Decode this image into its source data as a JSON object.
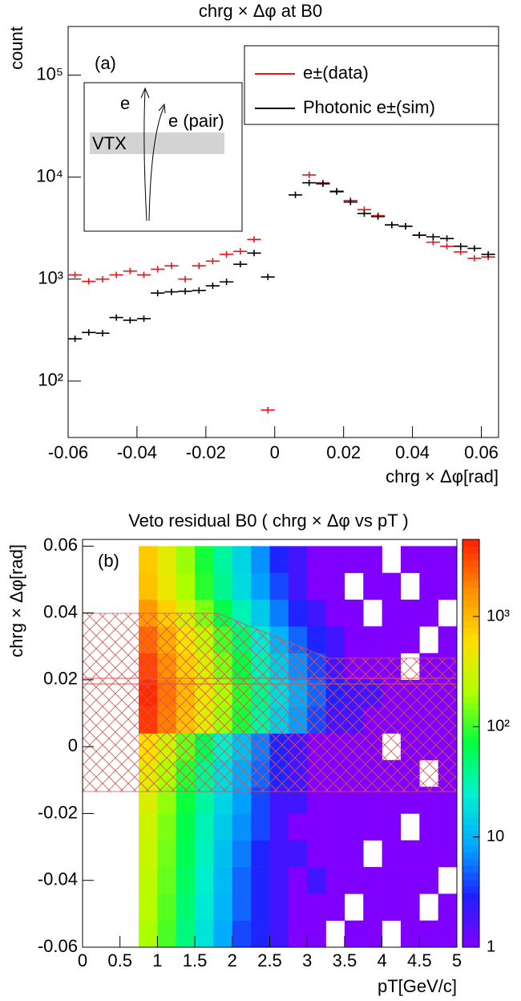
{
  "chart_data": [
    {
      "type": "errorpoints",
      "title": "chrg × Δφ at B0",
      "x_label": "chrg × Δφ[rad]",
      "y_label": "count",
      "annotations": [
        "(a)",
        "e",
        "e (pair)",
        "VTX"
      ],
      "x": [
        -0.058,
        -0.054,
        -0.05,
        -0.046,
        -0.042,
        -0.038,
        -0.034,
        -0.03,
        -0.026,
        -0.022,
        -0.018,
        -0.014,
        -0.01,
        -0.006,
        -0.002,
        0.002,
        0.006,
        0.01,
        0.014,
        0.018,
        0.022,
        0.026,
        0.03,
        0.034,
        0.038,
        0.042,
        0.046,
        0.05,
        0.054,
        0.058,
        0.062
      ],
      "series": [
        {
          "name": "e±(data)",
          "color": "#e8141e",
          "values": [
            1100,
            950,
            1000,
            1100,
            1200,
            1100,
            1250,
            1350,
            1000,
            1350,
            1500,
            1750,
            1870,
            2450,
            52,
            null,
            null,
            10500,
            8800,
            7300,
            5900,
            4800,
            4200,
            3400,
            3300,
            2700,
            2300,
            2100,
            1850,
            1600,
            1650
          ]
        },
        {
          "name": "Photonic e±(sim)",
          "color": "#000000",
          "values": [
            260,
            300,
            295,
            420,
            395,
            410,
            730,
            750,
            760,
            775,
            860,
            940,
            1400,
            1800,
            1050,
            null,
            6700,
            8800,
            8600,
            7200,
            5700,
            4400,
            4100,
            3400,
            3300,
            2700,
            2600,
            2500,
            2100,
            2000,
            1750
          ]
        }
      ],
      "xlim": [
        -0.06,
        0.065
      ],
      "xticks": [
        -0.06,
        -0.04,
        -0.02,
        0,
        0.02,
        0.04,
        0.06
      ],
      "ylim": [
        28,
        300000
      ],
      "log_y": true,
      "yticks": [
        {
          "value": 100,
          "label": "10²"
        },
        {
          "value": 1000,
          "label": "10³"
        },
        {
          "value": 10000,
          "label": "10⁴"
        },
        {
          "value": 100000,
          "label": "10⁵"
        }
      ],
      "legend": "top-right"
    },
    {
      "type": "heatmap",
      "title": "Veto residual B0 ( chrg × Δφ vs pT )",
      "x_label": "pT[GeV/c]",
      "y_label": "chrg × Δφ[rad]",
      "annotations": [
        "(b)"
      ],
      "xbins": [
        0.75,
        1,
        1.25,
        1.5,
        1.75,
        2,
        2.25,
        2.5,
        2.75,
        3,
        3.25,
        3.5,
        3.75,
        4,
        4.25,
        4.5,
        4.75,
        5
      ],
      "ybins": [
        -0.06,
        -0.052,
        -0.044,
        -0.036,
        -0.028,
        -0.02,
        -0.012,
        -0.004,
        0.004,
        0.012,
        0.02,
        0.028,
        0.036,
        0.044,
        0.052,
        0.06
      ],
      "values": [
        [
          200,
          110,
          45,
          20,
          9,
          4,
          3,
          2,
          1,
          1,
          null,
          1,
          1,
          null,
          1,
          1,
          1
        ],
        [
          230,
          120,
          50,
          22,
          10,
          5,
          3,
          2,
          1,
          1,
          1,
          null,
          1,
          1,
          1,
          null,
          1
        ],
        [
          250,
          130,
          55,
          25,
          11,
          5,
          3,
          2,
          1,
          2,
          1,
          1,
          1,
          1,
          1,
          1,
          null
        ],
        [
          280,
          140,
          60,
          28,
          12,
          6,
          3,
          2,
          2,
          1,
          1,
          1,
          null,
          1,
          1,
          1,
          1
        ],
        [
          300,
          150,
          65,
          30,
          14,
          7,
          4,
          2,
          1,
          1,
          1,
          1,
          1,
          1,
          null,
          1,
          1
        ],
        [
          350,
          170,
          75,
          35,
          16,
          8,
          4,
          2,
          2,
          1,
          1,
          1,
          1,
          1,
          1,
          1,
          1
        ],
        [
          400,
          200,
          90,
          40,
          18,
          9,
          5,
          3,
          2,
          1,
          1,
          1,
          1,
          1,
          1,
          null,
          1
        ],
        [
          600,
          300,
          130,
          60,
          25,
          12,
          6,
          3,
          2,
          1,
          1,
          1,
          1,
          null,
          1,
          1,
          1
        ],
        [
          4000,
          2000,
          900,
          400,
          180,
          80,
          35,
          15,
          8,
          4,
          2,
          2,
          1,
          1,
          1,
          1,
          1
        ],
        [
          4500,
          2200,
          1000,
          450,
          200,
          90,
          40,
          18,
          9,
          5,
          3,
          2,
          2,
          1,
          1,
          1,
          1
        ],
        [
          3500,
          1700,
          750,
          350,
          150,
          70,
          30,
          14,
          7,
          4,
          2,
          1,
          1,
          1,
          null,
          1,
          1
        ],
        [
          2500,
          1200,
          550,
          250,
          110,
          50,
          22,
          10,
          5,
          3,
          2,
          1,
          1,
          1,
          1,
          null,
          1
        ],
        [
          1500,
          750,
          330,
          150,
          65,
          30,
          14,
          6,
          3,
          2,
          1,
          1,
          null,
          1,
          1,
          1,
          null
        ],
        [
          900,
          450,
          200,
          90,
          40,
          18,
          8,
          4,
          2,
          1,
          1,
          null,
          1,
          1,
          null,
          1,
          1
        ],
        [
          800,
          400,
          180,
          80,
          35,
          16,
          7,
          3,
          2,
          1,
          1,
          1,
          1,
          null,
          1,
          1,
          1
        ]
      ],
      "xlim": [
        0,
        5
      ],
      "xticks": [
        0,
        0.5,
        1,
        1.5,
        2,
        2.5,
        3,
        3.5,
        4,
        4.5,
        5
      ],
      "ylim": [
        -0.06,
        0.062
      ],
      "yticks": [
        -0.06,
        -0.04,
        -0.02,
        0,
        0.02,
        0.04,
        0.06
      ],
      "zlim": [
        1,
        5000
      ],
      "log_z": true,
      "zticks": [
        1,
        10,
        {
          "value": 100,
          "label": "10²"
        },
        {
          "value": 1000,
          "label": "10³"
        }
      ],
      "colormap": [
        "#8000ff",
        "#2020ff",
        "#00a8ff",
        "#00f0d0",
        "#00ff40",
        "#b0ff00",
        "#ffe000",
        "#ff9000",
        "#ff2000"
      ]
    }
  ]
}
